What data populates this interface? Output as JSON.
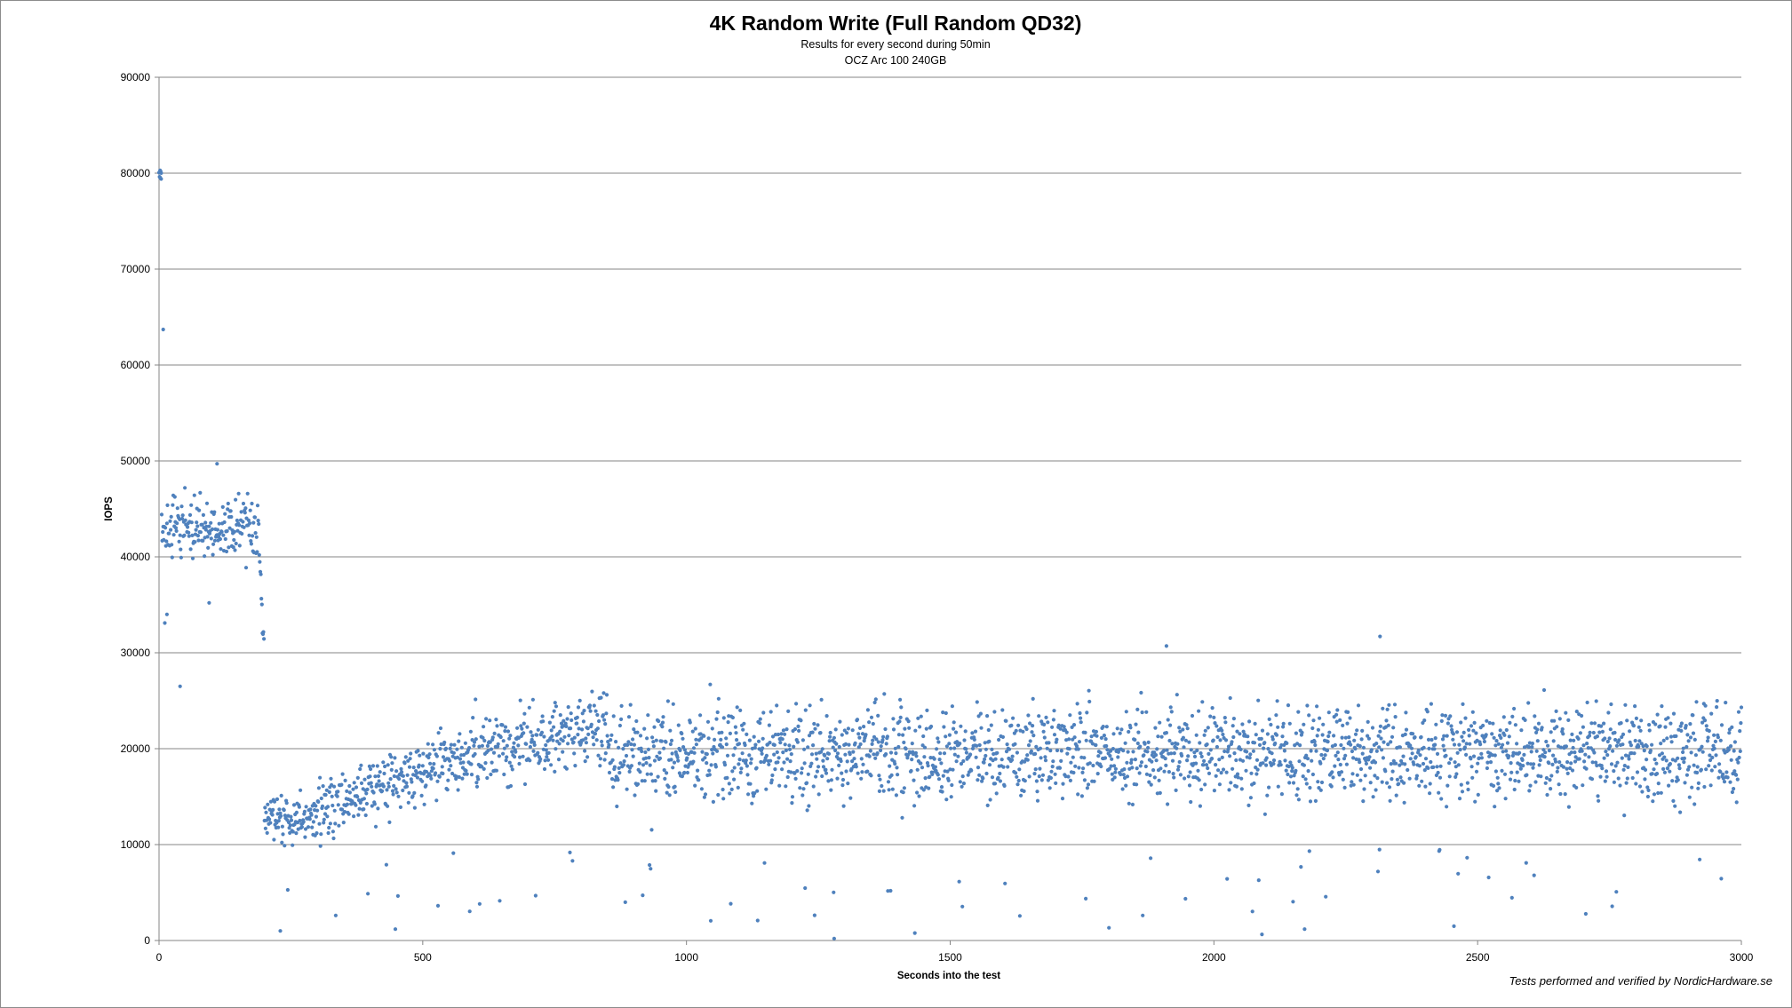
{
  "chart_data": {
    "type": "scatter",
    "title": "4K Random Write (Full Random QD32)",
    "subtitle_lines": [
      "Results for every second during 50min",
      "OCZ Arc 100 240GB"
    ],
    "xlabel": "Seconds into the test",
    "ylabel": "IOPS",
    "xlim": [
      0,
      3000
    ],
    "ylim": [
      0,
      90000
    ],
    "x_ticks": [
      "0",
      "500",
      "1000",
      "1500",
      "2000",
      "2500",
      "3000"
    ],
    "y_ticks": [
      "0",
      "10000",
      "20000",
      "30000",
      "40000",
      "50000",
      "60000",
      "70000",
      "80000",
      "90000"
    ],
    "grid": "horizontal major gridlines",
    "legend": "none",
    "marker_color": "#4F81BD",
    "series": [
      {
        "points_note": "one point per second, 0-3000",
        "phases": [
          {
            "x_range": [
              0,
              5
            ],
            "y_approx": [
              79500,
              80300
            ]
          },
          {
            "x": 8,
            "y": 63700
          },
          {
            "x_range": [
              5,
              195
            ],
            "mean": 43000,
            "spread": 3000
          },
          {
            "x_range": [
              190,
              200
            ],
            "decline_from": 40000,
            "decline_to": 30500
          },
          {
            "x_range": [
              200,
              300
            ],
            "mean": 13000,
            "spread": 2200
          },
          {
            "x_range": [
              300,
              600
            ],
            "mean_from": 13500,
            "mean_to": 19500,
            "spread": 3000
          },
          {
            "x_range": [
              600,
              850
            ],
            "mean_from": 19500,
            "mean_to": 22500,
            "spread": 3500
          },
          {
            "x_range": [
              850,
              3000
            ],
            "mean": 19500,
            "spread": 4500
          }
        ],
        "notable_points": [
          {
            "x": 2,
            "y": 80300
          },
          {
            "x": 4,
            "y": 79400
          },
          {
            "x": 8,
            "y": 63700
          },
          {
            "x": 110,
            "y": 49700
          },
          {
            "x": 2315,
            "y": 31700
          },
          {
            "x": 1910,
            "y": 30700
          },
          {
            "x": 1280,
            "y": 200
          },
          {
            "x": 230,
            "y": 1000
          },
          {
            "x": 40,
            "y": 26500
          },
          {
            "x": 15,
            "y": 34000
          },
          {
            "x": 95,
            "y": 35200
          }
        ]
      }
    ]
  },
  "credit": "Tests performed and verified by NordicHardware.se"
}
